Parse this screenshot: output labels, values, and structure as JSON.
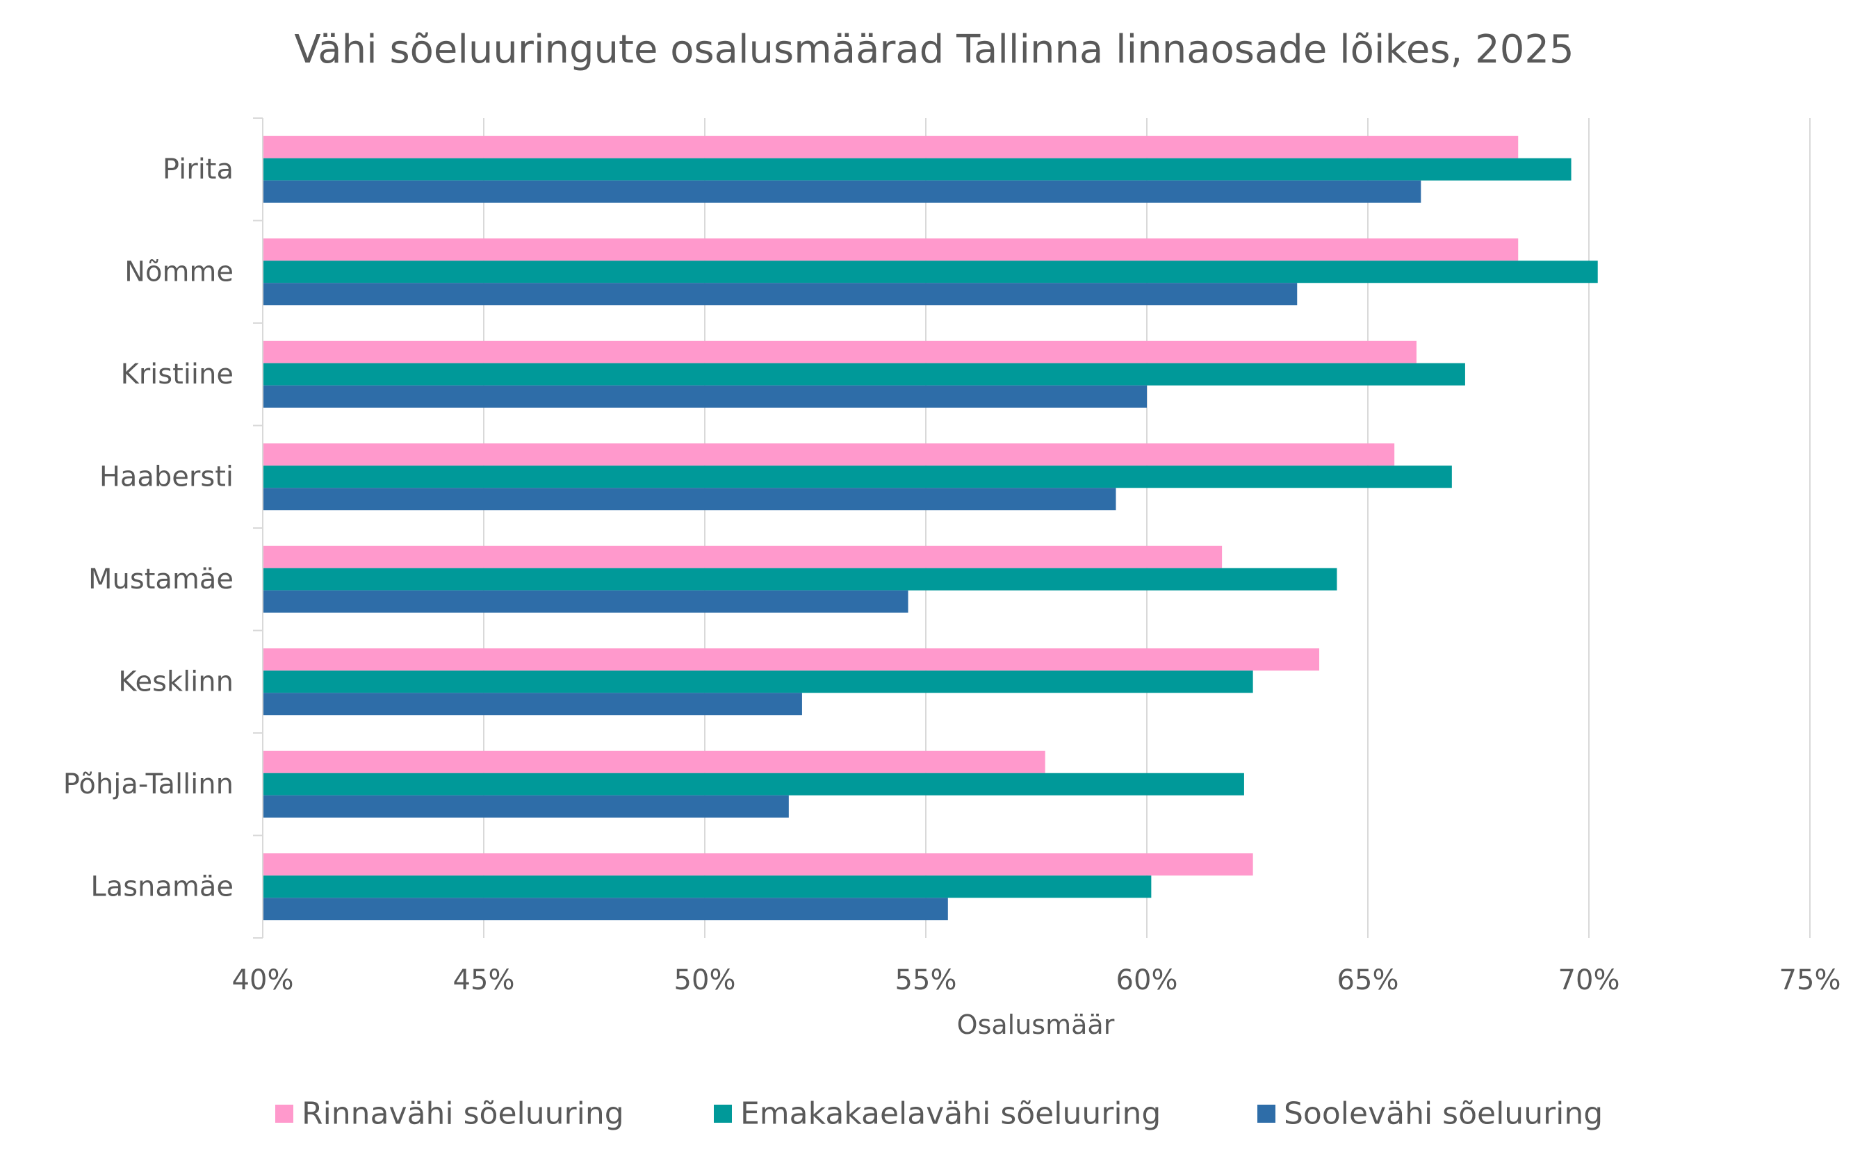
{
  "chart_data": {
    "type": "bar",
    "orientation": "horizontal",
    "title": "Vähi sõeluuringute osalusmäärad Tallinna linnaosade lõikes, 2025",
    "xlabel": "Osalusmäär",
    "ylabel": "",
    "categories": [
      "Pirita",
      "Nõmme",
      "Kristiine",
      "Haabersti",
      "Mustamäe",
      "Kesklinn",
      "Põhja-Tallinn",
      "Lasnamäe"
    ],
    "series": [
      {
        "name": "Rinnavähi sõeluuring",
        "color": "#FF99CC",
        "values": [
          68.4,
          68.4,
          66.1,
          65.6,
          61.7,
          63.9,
          57.7,
          62.4
        ]
      },
      {
        "name": "Emakakaelavähi sõeluuring",
        "color": "#009999",
        "values": [
          69.6,
          70.2,
          67.2,
          66.9,
          64.3,
          62.4,
          62.2,
          60.1
        ]
      },
      {
        "name": "Soolevähi sõeluuring",
        "color": "#2E6DA8",
        "values": [
          66.2,
          63.4,
          60.0,
          59.3,
          54.6,
          52.2,
          51.9,
          55.5
        ]
      }
    ],
    "xlim": [
      40,
      75
    ],
    "xticks": [
      40,
      45,
      50,
      55,
      60,
      65,
      70,
      75
    ],
    "xtick_labels": [
      "40%",
      "45%",
      "50%",
      "55%",
      "60%",
      "65%",
      "70%",
      "75%"
    ],
    "grid": true,
    "legend_position": "bottom"
  }
}
